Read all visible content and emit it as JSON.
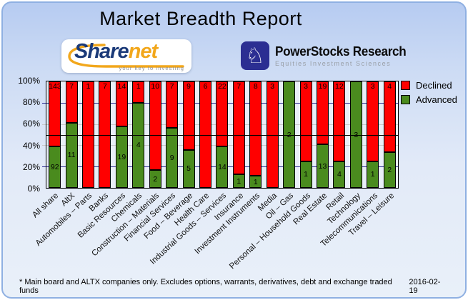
{
  "header": {
    "title": "Market Breadth Report"
  },
  "logos": {
    "sharenet": {
      "text_primary": "Share",
      "text_secondary": "net",
      "tagline": "your key to investing",
      "navy": "#1b3a78",
      "orange": "#f2a71b"
    },
    "powerstocks": {
      "name": "PowerStocks Research",
      "subtitle": "Equities Investment Sciences",
      "tile_color": "#2b2e92",
      "icon": "knight-icon",
      "knight_glyph": "♘"
    }
  },
  "chart_data": {
    "type": "bar",
    "variant": "stacked-100pct-column",
    "title": "Market Breadth Report",
    "categories": [
      "All share",
      "AltX",
      "Automobiles – Parts",
      "Banks",
      "Basic Resources",
      "Chemicals",
      "Construction – Materials",
      "Financial Services",
      "Food – Beverage",
      "Health Care",
      "Industrial Goods – Services",
      "Insurance",
      "Investment Instruments",
      "Media",
      "Oil – Gas",
      "Personal – Household Goods",
      "Real Estate",
      "Retail",
      "Technology",
      "Telecommunications",
      "Travel – Leisure"
    ],
    "series": [
      {
        "name": "Declined",
        "color": "#ff0000",
        "values": [
          143,
          7,
          1,
          7,
          14,
          1,
          10,
          7,
          9,
          6,
          22,
          7,
          8,
          3,
          0,
          3,
          19,
          12,
          0,
          3,
          4
        ]
      },
      {
        "name": "Advanced",
        "color": "#4a8b1e",
        "values": [
          92,
          11,
          0,
          0,
          19,
          4,
          2,
          9,
          5,
          0,
          14,
          1,
          1,
          0,
          2,
          1,
          13,
          4,
          3,
          1,
          2
        ]
      }
    ],
    "ylabel": "",
    "xlabel": "",
    "ylim": [
      0,
      100
    ],
    "y_ticks": [
      "100%",
      "80%",
      "60%",
      "40%",
      "20%",
      "0%"
    ],
    "y_tick_values": [
      100,
      80,
      60,
      40,
      20,
      0
    ],
    "grid": {
      "navy_lines_pct": [
        80,
        20
      ],
      "gray_lines_pct": [
        60,
        40
      ],
      "mid_line_pct": 50,
      "navy_color": "#2b2b91",
      "gray_color": "#c8c8c8"
    },
    "legend_position": "top-right"
  },
  "legend": {
    "items": [
      {
        "label": "Declined",
        "color": "#ff0000"
      },
      {
        "label": "Advanced",
        "color": "#4a8b1e"
      }
    ]
  },
  "footer": {
    "note": "* Main board and ALTX companies only. Excludes options, warrants, derivatives, debt and exchange traded funds",
    "date": "2016-02-19"
  }
}
